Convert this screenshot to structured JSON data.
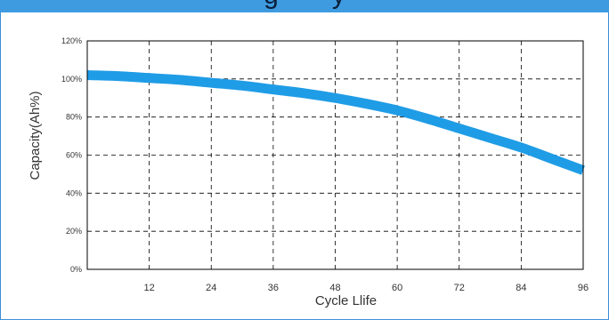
{
  "header": {
    "title_left": "g",
    "title_right": "y"
  },
  "colors": {
    "accent": "#3f9be0",
    "curve": "#1f9ce6",
    "grid": "#000000",
    "text": "#333333"
  },
  "chart_data": {
    "type": "line",
    "title": "",
    "xlabel": "Cycle Llife",
    "ylabel": "Capacity(Ah%)",
    "xlim": [
      0,
      96
    ],
    "ylim": [
      0,
      120
    ],
    "xticks": [
      12,
      24,
      36,
      48,
      60,
      72,
      84,
      96
    ],
    "xtick_labels": [
      "12",
      "24",
      "36",
      "48",
      "60",
      "72",
      "84",
      "96"
    ],
    "yticks": [
      0,
      20,
      40,
      60,
      80,
      100,
      120
    ],
    "ytick_labels": [
      "0%",
      "20%",
      "40%",
      "60%",
      "80%",
      "100%",
      "120%"
    ],
    "grid": true,
    "grid_style": "dashed",
    "series": [
      {
        "x": [
          0,
          6,
          12,
          18,
          24,
          30,
          36,
          42,
          48,
          54,
          60,
          66,
          72,
          78,
          84,
          90,
          96
        ],
        "values": [
          102,
          101.5,
          100.5,
          99.5,
          98,
          96.5,
          94.5,
          92.5,
          90,
          87,
          83.5,
          79,
          74,
          69,
          64,
          58,
          52
        ]
      }
    ]
  }
}
